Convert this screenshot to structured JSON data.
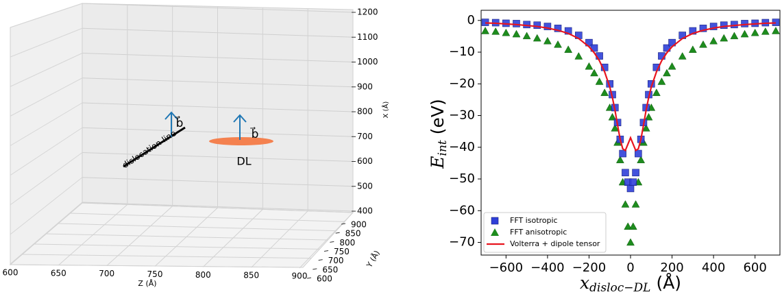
{
  "chart_data": [
    {
      "type": "3d",
      "x_label": "X (Å)",
      "y_label": "Y (Å)",
      "z_label": "Z (Å)",
      "xlim": [
        400,
        1200
      ],
      "xticks": [
        400,
        500,
        600,
        700,
        800,
        900,
        1000,
        1100,
        1200
      ],
      "ylim": [
        600,
        900
      ],
      "yticks": [
        600,
        650,
        700,
        750,
        800,
        850,
        900
      ],
      "zlim": [
        600,
        900
      ],
      "zticks": [
        600,
        650,
        700,
        750,
        800,
        850,
        900
      ],
      "annotations": [
        "dislocation line",
        "b⃗",
        "b⃗",
        "DL"
      ],
      "grid": true
    },
    {
      "type": "scatter",
      "x": [
        -700,
        -650,
        -600,
        -550,
        -500,
        -450,
        -400,
        -350,
        -300,
        -250,
        -200,
        -175,
        -150,
        -125,
        -100,
        -87.5,
        -75,
        -62.5,
        -50,
        -37.5,
        -25,
        -12.5,
        0,
        12.5,
        25,
        37.5,
        50,
        62.5,
        75,
        87.5,
        100,
        125,
        150,
        175,
        200,
        250,
        300,
        350,
        400,
        450,
        500,
        550,
        600,
        650,
        700
      ],
      "series": [
        {
          "name": "FFT isotropic",
          "color": "#2f3fd8",
          "marker": "square",
          "values": [
            -0.6,
            -0.7,
            -0.9,
            -1.0,
            -1.3,
            -1.5,
            -1.9,
            -2.5,
            -3.3,
            -4.7,
            -7.0,
            -8.7,
            -11.2,
            -14.8,
            -20.0,
            -23.4,
            -27.5,
            -32.2,
            -37.5,
            -42,
            -48,
            -51,
            -53,
            -51,
            -48,
            -42,
            -37.5,
            -32.2,
            -27.5,
            -23.4,
            -20.0,
            -14.8,
            -11.2,
            -8.7,
            -7.0,
            -4.7,
            -3.3,
            -2.5,
            -1.9,
            -1.5,
            -1.3,
            -1.0,
            -0.9,
            -0.7,
            -0.6
          ]
        },
        {
          "name": "FFT anisotropic",
          "color": "#1e8c1e",
          "marker": "triangle",
          "values": [
            -3.3,
            -3.5,
            -3.9,
            -4.3,
            -4.9,
            -5.6,
            -6.5,
            -7.6,
            -9.2,
            -11.3,
            -14.5,
            -16.6,
            -19.3,
            -22.8,
            -27.5,
            -30.5,
            -34,
            -38.5,
            -44,
            -51,
            -58,
            -65,
            -70,
            -65,
            -58,
            -51,
            -44,
            -38.5,
            -34,
            -30.5,
            -27.5,
            -22.8,
            -19.3,
            -16.6,
            -14.5,
            -11.3,
            -9.2,
            -7.6,
            -6.5,
            -5.6,
            -4.9,
            -4.3,
            -3.9,
            -3.5,
            -3.3
          ]
        },
        {
          "name": "Volterra + dipole tensor",
          "color": "#e8141e",
          "marker": "line",
          "values": [
            -0.8,
            -0.9,
            -1.1,
            -1.3,
            -1.6,
            -1.9,
            -2.4,
            -3.1,
            -4.1,
            -5.7,
            -8.3,
            -10.2,
            -12.7,
            -16.2,
            -21,
            -24.3,
            -28.3,
            -33,
            -37.5,
            -40.5,
            -41,
            -39,
            -37,
            -39,
            -41,
            -40.5,
            -37.5,
            -33,
            -28.3,
            -24.3,
            -21,
            -16.2,
            -12.7,
            -10.2,
            -8.3,
            -5.7,
            -4.1,
            -3.1,
            -2.4,
            -1.9,
            -1.6,
            -1.3,
            -1.1,
            -0.9,
            -0.8
          ]
        }
      ],
      "xlim": [
        -720,
        720
      ],
      "ylim": [
        -74,
        3.2
      ],
      "xticks": [
        {
          "value": -600,
          "label": "−600"
        },
        {
          "value": -400,
          "label": "−400"
        },
        {
          "value": -200,
          "label": "−200"
        },
        0,
        200,
        400,
        600
      ],
      "yticks": [
        0,
        {
          "value": -10,
          "label": "−10"
        },
        {
          "value": -20,
          "label": "−20"
        },
        {
          "value": -30,
          "label": "−30"
        },
        {
          "value": -40,
          "label": "−40"
        },
        {
          "value": -50,
          "label": "−50"
        },
        {
          "value": -60,
          "label": "−60"
        },
        {
          "value": -70,
          "label": "−70"
        }
      ],
      "xlabel": {
        "main": "x",
        "sub": "disloc−DL",
        "unit": "(Å)"
      },
      "ylabel": {
        "main": "E",
        "sub": "int",
        "unit": "(eV)"
      },
      "legend": "lower left"
    }
  ]
}
